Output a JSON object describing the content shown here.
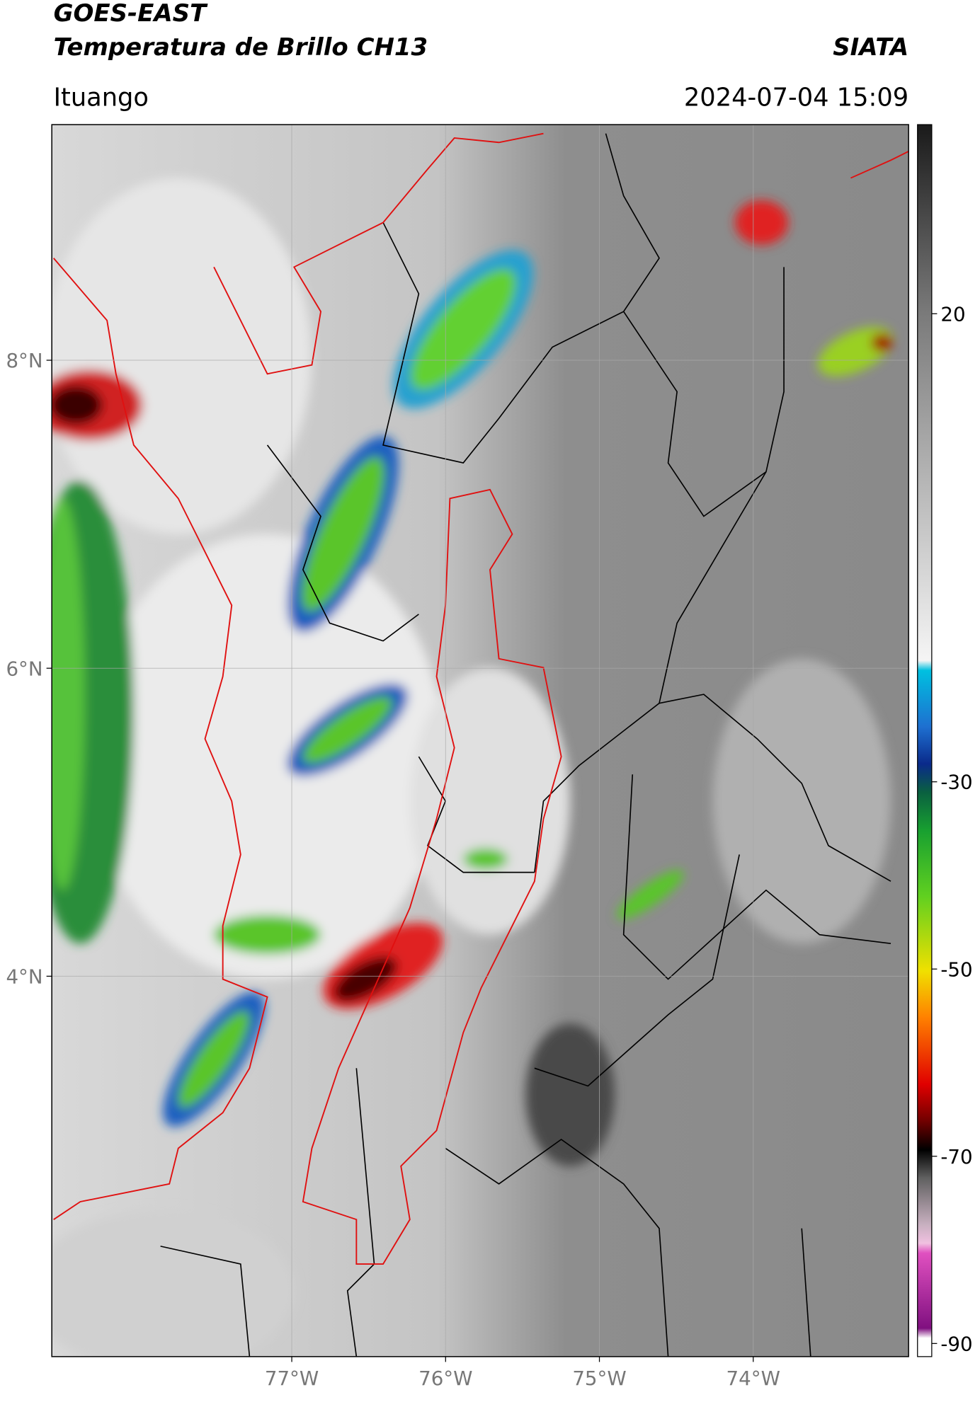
{
  "header": {
    "title": "GOES-EAST",
    "subtitle": "Temperatura de Brillo CH13",
    "brand": "SIATA",
    "location": "Ituango",
    "datetime": "2024-07-04 15:09"
  },
  "map": {
    "xlim": [
      -78.56,
      -72.99
    ],
    "ylim": [
      1.53,
      9.53
    ],
    "xticks": [
      {
        "value": -77,
        "label": "77°W"
      },
      {
        "value": -76,
        "label": "76°W"
      },
      {
        "value": -75,
        "label": "75°W"
      },
      {
        "value": -74,
        "label": "74°W"
      }
    ],
    "yticks": [
      {
        "value": 8,
        "label": "8°N"
      },
      {
        "value": 6,
        "label": "6°N"
      },
      {
        "value": 4,
        "label": "4°N"
      }
    ],
    "grid": true
  },
  "colorbar": {
    "lim": [
      -91.4,
      40.2
    ],
    "ticks": [
      20,
      -30,
      -50,
      -70,
      -90
    ]
  }
}
